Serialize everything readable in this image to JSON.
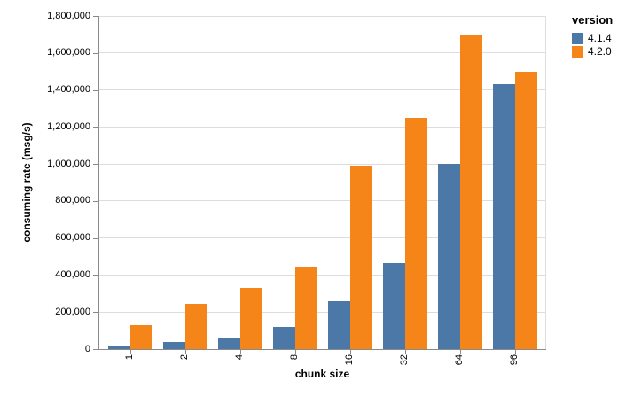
{
  "chart_data": {
    "type": "bar",
    "title": "",
    "xlabel": "chunk size",
    "ylabel": "consuming rate (msg/s)",
    "categories": [
      "1",
      "2",
      "4",
      "8",
      "16",
      "32",
      "64",
      "96"
    ],
    "series": [
      {
        "name": "4.1.4",
        "color": "#4c78a8",
        "values": [
          20000,
          36000,
          62000,
          120000,
          260000,
          465000,
          1000000,
          1430000
        ]
      },
      {
        "name": "4.2.0",
        "color": "#f58518",
        "values": [
          130000,
          245000,
          330000,
          445000,
          990000,
          1250000,
          1700000,
          1500000
        ]
      }
    ],
    "ylim": [
      0,
      1800000
    ],
    "yticks": [
      0,
      200000,
      400000,
      600000,
      800000,
      1000000,
      1200000,
      1400000,
      1600000,
      1800000
    ],
    "grid": true,
    "legend": {
      "title": "version",
      "position": "right"
    }
  },
  "colors": {
    "background": "#ffffff",
    "gridline": "#dddddd",
    "axis_domain": "#8a8a8a",
    "blue_series": "#4c78a8",
    "orange_series": "#f58518"
  }
}
